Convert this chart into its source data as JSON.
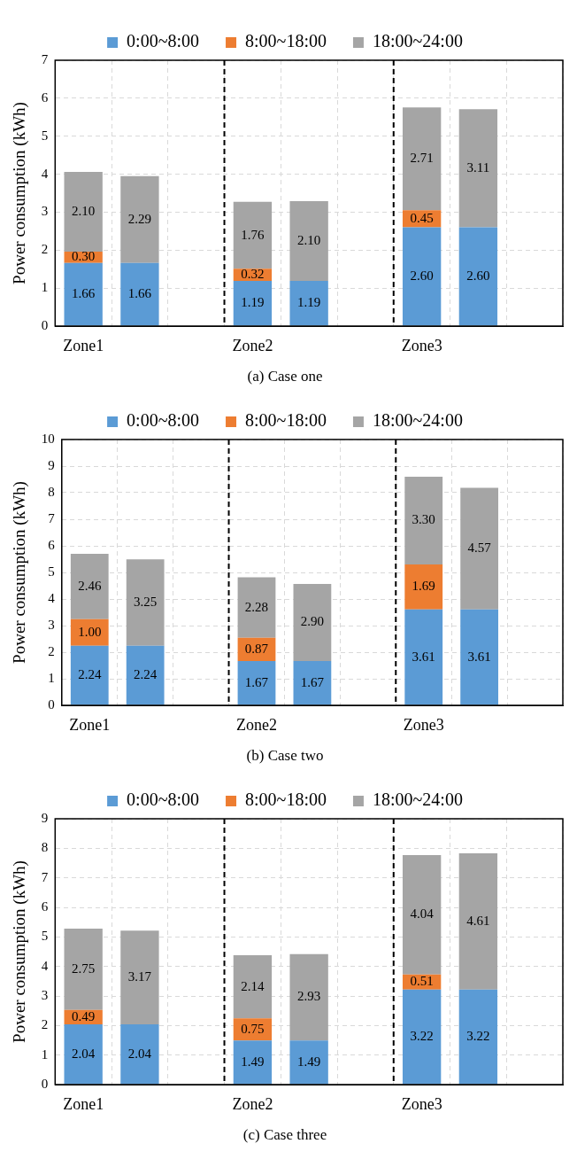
{
  "chart_data": [
    {
      "type": "bar",
      "title": "(a) Case one",
      "ylabel": "Power consumption (kWh)",
      "categories": [
        "Zone1",
        null,
        null,
        "Zone2",
        null,
        null,
        "Zone3",
        null,
        null
      ],
      "stacked": true,
      "ylim": [
        0,
        7
      ],
      "yticks": [
        0,
        1,
        2,
        3,
        4,
        5,
        6,
        7
      ],
      "grid": true,
      "legend": "top",
      "series": [
        {
          "name": "0:00~8:00",
          "color": "#5b9bd5",
          "values": [
            1.66,
            1.66,
            null,
            1.19,
            1.19,
            null,
            2.6,
            2.6,
            null
          ],
          "value_labels": [
            "1.66",
            "1.66",
            null,
            "1.19",
            "1.19",
            null,
            "2.60",
            "2.60",
            null
          ]
        },
        {
          "name": "8:00~18:00",
          "color": "#ed7d31",
          "values": [
            0.3,
            null,
            null,
            0.32,
            null,
            null,
            0.45,
            null,
            null
          ],
          "value_labels": [
            "0.30",
            null,
            null,
            "0.32",
            null,
            null,
            "0.45",
            null,
            null
          ]
        },
        {
          "name": "18:00~24:00",
          "color": "#a5a5a5",
          "values": [
            2.1,
            2.29,
            null,
            1.76,
            2.1,
            null,
            2.71,
            3.11,
            null
          ],
          "value_labels": [
            "2.10",
            "2.29",
            null,
            "1.76",
            "2.10",
            null,
            "2.71",
            "3.11",
            null
          ]
        }
      ]
    },
    {
      "type": "bar",
      "title": "(b) Case two",
      "ylabel": "Power consumption (kWh)",
      "categories": [
        "Zone1",
        null,
        null,
        "Zone2",
        null,
        null,
        "Zone3",
        null,
        null
      ],
      "stacked": true,
      "ylim": [
        0,
        10
      ],
      "yticks": [
        0,
        1,
        2,
        3,
        4,
        5,
        6,
        7,
        8,
        9,
        10
      ],
      "grid": true,
      "legend": "top",
      "series": [
        {
          "name": "0:00~8:00",
          "color": "#5b9bd5",
          "values": [
            2.24,
            2.24,
            null,
            1.67,
            1.67,
            null,
            3.61,
            3.61,
            null
          ],
          "value_labels": [
            "2.24",
            "2.24",
            null,
            "1.67",
            "1.67",
            null,
            "3.61",
            "3.61",
            null
          ]
        },
        {
          "name": "8:00~18:00",
          "color": "#ed7d31",
          "values": [
            1.0,
            null,
            null,
            0.87,
            null,
            null,
            1.69,
            null,
            null
          ],
          "value_labels": [
            "1.00",
            null,
            null,
            "0.87",
            null,
            null,
            "1.69",
            null,
            null
          ]
        },
        {
          "name": "18:00~24:00",
          "color": "#a5a5a5",
          "values": [
            2.46,
            3.25,
            null,
            2.28,
            2.9,
            null,
            3.3,
            4.57,
            null
          ],
          "value_labels": [
            "2.46",
            "3.25",
            null,
            "2.28",
            "2.90",
            null,
            "3.30",
            "4.57",
            null
          ]
        }
      ]
    },
    {
      "type": "bar",
      "title": "(c) Case three",
      "ylabel": "Power consumption (kWh)",
      "categories": [
        "Zone1",
        null,
        null,
        "Zone2",
        null,
        null,
        "Zone3",
        null,
        null
      ],
      "stacked": true,
      "ylim": [
        0,
        9
      ],
      "yticks": [
        0,
        1,
        2,
        3,
        4,
        5,
        6,
        7,
        8,
        9
      ],
      "grid": true,
      "legend": "top",
      "series": [
        {
          "name": "0:00~8:00",
          "color": "#5b9bd5",
          "values": [
            2.04,
            2.04,
            null,
            1.49,
            1.49,
            null,
            3.22,
            3.22,
            null
          ],
          "value_labels": [
            "2.04",
            "2.04",
            null,
            "1.49",
            "1.49",
            null,
            "3.22",
            "3.22",
            null
          ]
        },
        {
          "name": "8:00~18:00",
          "color": "#ed7d31",
          "values": [
            0.49,
            null,
            null,
            0.75,
            null,
            null,
            0.51,
            null,
            null
          ],
          "value_labels": [
            "0.49",
            null,
            null,
            "0.75",
            null,
            null,
            "0.51",
            null,
            null
          ]
        },
        {
          "name": "18:00~24:00",
          "color": "#a5a5a5",
          "values": [
            2.75,
            3.17,
            null,
            2.14,
            2.93,
            null,
            4.04,
            4.61,
            null
          ],
          "value_labels": [
            "2.75",
            "3.17",
            null,
            "2.14",
            "2.93",
            null,
            "4.04",
            "4.61",
            null
          ]
        }
      ]
    }
  ]
}
